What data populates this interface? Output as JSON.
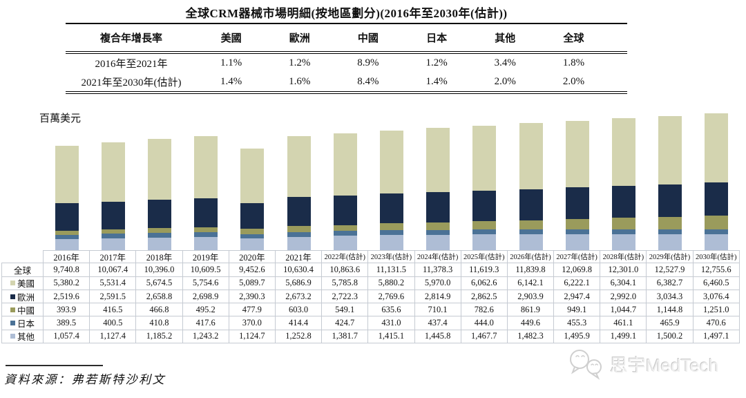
{
  "title": "全球CRM器械市場明細(按地區劃分)(2016年至2030年(估計))",
  "cagr_table": {
    "header": [
      "複合年增長率",
      "美國",
      "歐洲",
      "中國",
      "日本",
      "其他",
      "全球"
    ],
    "rows": [
      {
        "label": "2016年至2021年",
        "values": [
          "1.1%",
          "1.2%",
          "8.9%",
          "1.2%",
          "3.4%",
          "1.8%"
        ]
      },
      {
        "label": "2021年至2030年(估計)",
        "values": [
          "1.4%",
          "1.6%",
          "8.4%",
          "1.4%",
          "2.0%",
          "2.0%"
        ]
      }
    ]
  },
  "chart_data": {
    "type": "bar",
    "stacked": true,
    "unit_label": "百萬美元",
    "legend_position": "table-left",
    "grid": false,
    "ylim": [
      0,
      12755.6
    ],
    "categories": [
      "2016年",
      "2017年",
      "2018年",
      "2019年",
      "2020年",
      "2021年",
      "2022年(估計)",
      "2023年(估計)",
      "2024年(估計)",
      "2025年(估計)",
      "2026年(估計)",
      "2027年(估計)",
      "2028年(估計)",
      "2029年(估計)",
      "2030年(估計)"
    ],
    "series": [
      {
        "name": "其他",
        "color": "#aebdd5",
        "values": [
          1057.4,
          1127.4,
          1185.2,
          1243.2,
          1124.7,
          1252.8,
          1381.7,
          1415.1,
          1445.8,
          1467.7,
          1482.3,
          1495.9,
          1499.1,
          1500.2,
          1497.1
        ]
      },
      {
        "name": "日本",
        "color": "#4b7296",
        "values": [
          389.5,
          400.5,
          410.8,
          417.6,
          370.0,
          414.4,
          424.7,
          431.0,
          437.4,
          444.0,
          449.6,
          455.3,
          461.1,
          465.9,
          470.6
        ]
      },
      {
        "name": "中國",
        "color": "#9a9b5c",
        "values": [
          393.9,
          416.5,
          466.8,
          495.2,
          477.9,
          603.0,
          549.1,
          635.6,
          710.1,
          782.6,
          861.9,
          949.1,
          1044.7,
          1144.8,
          1251.0
        ]
      },
      {
        "name": "歐洲",
        "color": "#1a2c49",
        "values": [
          2519.6,
          2591.5,
          2658.8,
          2698.9,
          2390.3,
          2673.2,
          2722.3,
          2769.6,
          2814.9,
          2862.5,
          2903.9,
          2947.4,
          2992.0,
          3034.3,
          3076.4
        ]
      },
      {
        "name": "美國",
        "color": "#d3d4b0",
        "values": [
          5380.2,
          5531.4,
          5674.5,
          5754.6,
          5089.7,
          5686.9,
          5785.8,
          5880.2,
          5970.0,
          6062.6,
          6142.1,
          6222.1,
          6304.1,
          6382.7,
          6460.5
        ]
      }
    ],
    "totals": {
      "name": "全球",
      "values": [
        9740.8,
        10067.4,
        10396.0,
        10609.5,
        9452.6,
        10630.4,
        10863.6,
        11131.5,
        11378.3,
        11619.3,
        11839.8,
        12069.8,
        12301.0,
        12527.9,
        12755.6
      ]
    }
  },
  "data_table": {
    "columns": [
      "2016年",
      "2017年",
      "2018年",
      "2019年",
      "2020年",
      "2021年",
      "2022年(估計)",
      "2023年(估計)",
      "2024年(估計)",
      "2025年(估計)",
      "2026年(估計)",
      "2027年(估計)",
      "2028年(估計)",
      "2029年(估計)",
      "2030年(估計)"
    ],
    "rows": [
      {
        "label": "全球",
        "color": null,
        "values": [
          "9,740.8",
          "10,067.4",
          "10,396.0",
          "10,609.5",
          "9,452.6",
          "10,630.4",
          "10,863.6",
          "11,131.5",
          "11,378.3",
          "11,619.3",
          "11,839.8",
          "12,069.8",
          "12,301.0",
          "12,527.9",
          "12,755.6"
        ]
      },
      {
        "label": "美國",
        "color": "#d3d4b0",
        "values": [
          "5,380.2",
          "5,531.4",
          "5,674.5",
          "5,754.6",
          "5,089.7",
          "5,686.9",
          "5,785.8",
          "5,880.2",
          "5,970.0",
          "6,062.6",
          "6,142.1",
          "6,222.1",
          "6,304.1",
          "6,382.7",
          "6,460.5"
        ]
      },
      {
        "label": "歐洲",
        "color": "#1a2c49",
        "values": [
          "2,519.6",
          "2,591.5",
          "2,658.8",
          "2,698.9",
          "2,390.3",
          "2,673.2",
          "2,722.3",
          "2,769.6",
          "2,814.9",
          "2,862.5",
          "2,903.9",
          "2,947.4",
          "2,992.0",
          "3,034.3",
          "3,076.4"
        ]
      },
      {
        "label": "中國",
        "color": "#9a9b5c",
        "values": [
          "393.9",
          "416.5",
          "466.8",
          "495.2",
          "477.9",
          "603.0",
          "549.1",
          "635.6",
          "710.1",
          "782.6",
          "861.9",
          "949.1",
          "1,044.7",
          "1,144.8",
          "1,251.0"
        ]
      },
      {
        "label": "日本",
        "color": "#4b7296",
        "values": [
          "389.5",
          "400.5",
          "410.8",
          "417.6",
          "370.0",
          "414.4",
          "424.7",
          "431.0",
          "437.4",
          "444.0",
          "449.6",
          "455.3",
          "461.1",
          "465.9",
          "470.6"
        ]
      },
      {
        "label": "其他",
        "color": "#aebdd5",
        "values": [
          "1,057.4",
          "1,127.4",
          "1,185.2",
          "1,243.2",
          "1,124.7",
          "1,252.8",
          "1,381.7",
          "1,415.1",
          "1,445.8",
          "1,467.7",
          "1,482.3",
          "1,495.9",
          "1,499.1",
          "1,500.2",
          "1,497.1"
        ]
      }
    ]
  },
  "source": {
    "text": "資料來源：弗若斯特沙利文"
  },
  "watermark": {
    "text": "思宇MedTech"
  }
}
